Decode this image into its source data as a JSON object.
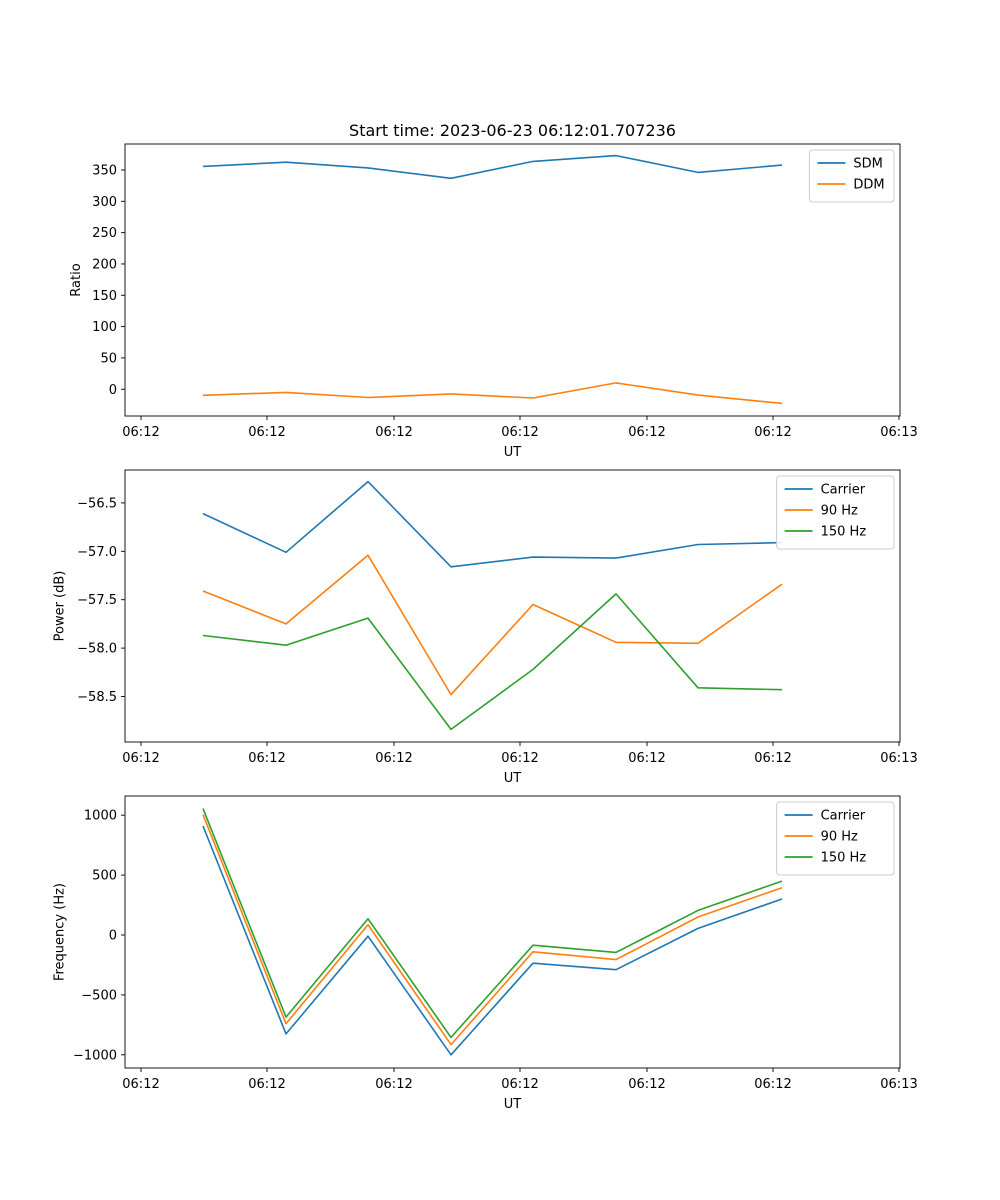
{
  "figure": {
    "title": "Start time: 2023-06-23 06:12:01.707236"
  },
  "chart_data": [
    {
      "type": "line",
      "xlabel": "UT",
      "ylabel": "Ratio",
      "x_tick_labels": [
        "06:12",
        "06:12",
        "06:12",
        "06:12",
        "06:12",
        "06:12",
        "06:13"
      ],
      "y_ticks": [
        0,
        50,
        100,
        150,
        200,
        250,
        300,
        350
      ],
      "y_tick_labels": [
        "0",
        "50",
        "100",
        "150",
        "200",
        "250",
        "300",
        "350"
      ],
      "ylim": [
        -42.7,
        391.5
      ],
      "grid": false,
      "legend_position": "top-right",
      "series": [
        {
          "name": "SDM",
          "color": "#1f77b4",
          "values": [
            355.7,
            362.5,
            353.3,
            336.8,
            363.8,
            373.0,
            346.2,
            357.8
          ]
        },
        {
          "name": "DDM",
          "color": "#ff7f0e",
          "values": [
            -9.6,
            -5.0,
            -13.2,
            -7.4,
            -14.0,
            10.2,
            -9.4,
            -22.6
          ]
        }
      ]
    },
    {
      "type": "line",
      "xlabel": "UT",
      "ylabel": "Power (dB)",
      "x_tick_labels": [
        "06:12",
        "06:12",
        "06:12",
        "06:12",
        "06:12",
        "06:12",
        "06:13"
      ],
      "y_ticks": [
        -58.5,
        -58.0,
        -57.5,
        -57.0,
        -56.5
      ],
      "y_tick_labels": [
        "−58.5",
        "−58.0",
        "−57.5",
        "−57.0",
        "−56.5"
      ],
      "ylim": [
        -58.97,
        -56.16
      ],
      "grid": false,
      "legend_position": "top-right",
      "series": [
        {
          "name": "Carrier",
          "color": "#1f77b4",
          "values": [
            -56.61,
            -57.01,
            -56.28,
            -57.16,
            -57.06,
            -57.07,
            -56.93,
            -56.91
          ]
        },
        {
          "name": "90 Hz",
          "color": "#ff7f0e",
          "values": [
            -57.41,
            -57.75,
            -57.04,
            -58.48,
            -57.55,
            -57.94,
            -57.95,
            -57.34
          ]
        },
        {
          "name": "150 Hz",
          "color": "#2ca02c",
          "values": [
            -57.87,
            -57.97,
            -57.69,
            -58.84,
            -58.22,
            -57.44,
            -58.41,
            -58.43
          ]
        }
      ]
    },
    {
      "type": "line",
      "xlabel": "UT",
      "ylabel": "Frequency (Hz)",
      "x_tick_labels": [
        "06:12",
        "06:12",
        "06:12",
        "06:12",
        "06:12",
        "06:12",
        "06:13"
      ],
      "y_ticks": [
        -1000,
        -500,
        0,
        500,
        1000
      ],
      "y_tick_labels": [
        "−1000",
        "−500",
        "0",
        "500",
        "1000"
      ],
      "ylim": [
        -1110,
        1160
      ],
      "grid": false,
      "legend_position": "top-right",
      "series": [
        {
          "name": "Carrier",
          "color": "#1f77b4",
          "values": [
            910,
            -825,
            -10,
            -1000,
            -235,
            -290,
            55,
            300
          ]
        },
        {
          "name": "90 Hz",
          "color": "#ff7f0e",
          "values": [
            1005,
            -740,
            85,
            -915,
            -140,
            -205,
            150,
            395
          ]
        },
        {
          "name": "150 Hz",
          "color": "#2ca02c",
          "values": [
            1055,
            -685,
            135,
            -855,
            -85,
            -145,
            205,
            450
          ]
        }
      ]
    }
  ]
}
